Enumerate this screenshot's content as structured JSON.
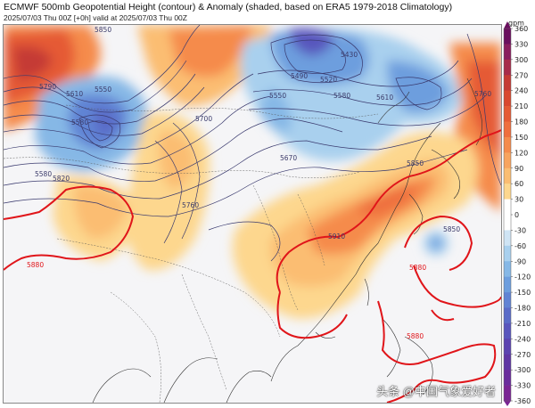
{
  "header": {
    "title": "ECMWF 500mb Geopotential Height (contour) & Anomaly (shaded, based on ERA5 1979-2018 Climatology)",
    "subtitle": "2025/07/03 Thu 00Z [+0h] valid at 2025/07/03 Thu 00Z"
  },
  "colorbar": {
    "unit": "gpm",
    "ticks": [
      "360",
      "330",
      "300",
      "270",
      "240",
      "210",
      "180",
      "150",
      "120",
      "90",
      "60",
      "30",
      "0",
      "-30",
      "-60",
      "-90",
      "-120",
      "-150",
      "-180",
      "-210",
      "-240",
      "-270",
      "-300",
      "-330",
      "-360"
    ],
    "colors": [
      "#6a0f5e",
      "#8a1d5e",
      "#a72b4a",
      "#c53a34",
      "#d9482f",
      "#e55a34",
      "#ef6f3e",
      "#f58b4c",
      "#f8a45e",
      "#fbbd72",
      "#fdd78e",
      "#ffffff",
      "#ffffff",
      "#cfe4f4",
      "#a9d0ee",
      "#86b8e6",
      "#6d9ede",
      "#6184d4",
      "#5a6cc8",
      "#5956bd",
      "#5b43b0",
      "#5f36a4",
      "#6a2c9c",
      "#7a2494"
    ]
  },
  "contour_labels": {
    "c5850": "5850",
    "c5610": "5610",
    "c5550": "5550",
    "c5580": "5580",
    "c5820": "5820",
    "c5790": "5790",
    "c5700": "5700",
    "c5490": "5490",
    "c5520": "5520",
    "c5430": "5430",
    "c5580b": "5580",
    "c5550b": "5550",
    "c5610b": "5610",
    "c5760": "5760",
    "c5670": "5670",
    "c5850b": "5850",
    "c5910": "5910",
    "c5880a": "5880",
    "c5880b": "5880",
    "c5880c": "5880",
    "c5850c": "5850",
    "c5580c": "5580",
    "c5760b": "5760"
  },
  "watermark": "头条 @中国气象爱好者"
}
